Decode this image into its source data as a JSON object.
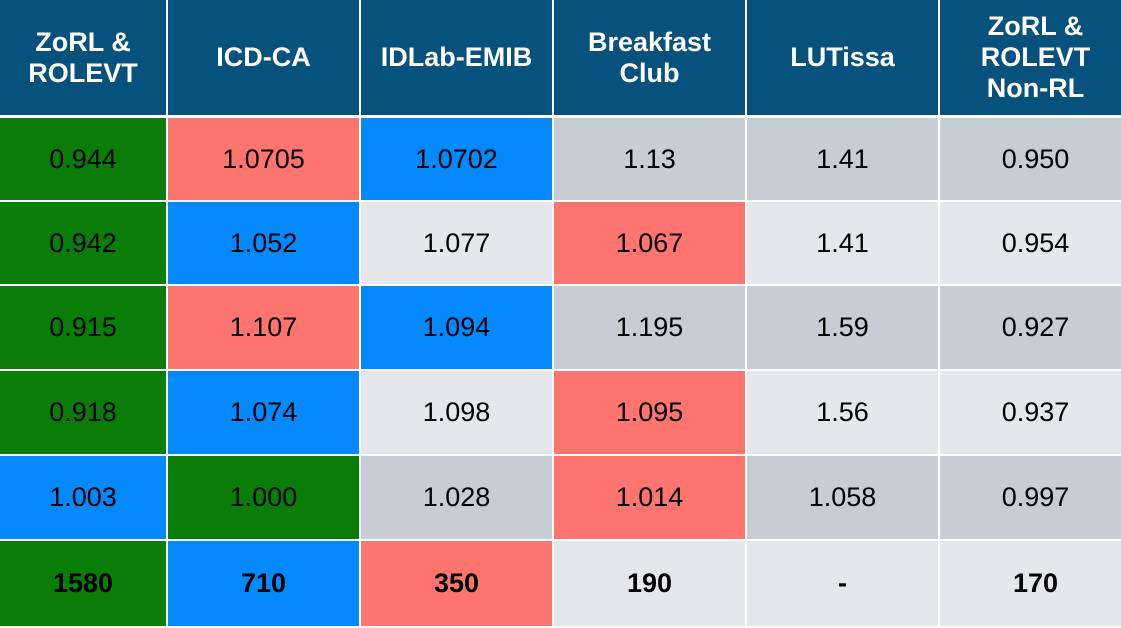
{
  "colors": {
    "header": "#07527c",
    "green": "#0a7d09",
    "blue": "#0389fb",
    "red": "#fe746e",
    "gray_dark": "#c8cdd3",
    "gray_light": "#e5e7ea"
  },
  "chart_data": {
    "type": "table",
    "columns": [
      "ZoRL &\nROLEVT",
      "ICD-CA",
      "IDLab-EMIB",
      "Breakfast\nClub",
      "LUTissa",
      "ZoRL &\nROLEVT\nNon-RL"
    ],
    "rows": [
      {
        "cells": [
          {
            "value": "0.944",
            "fill": "green"
          },
          {
            "value": "1.0705",
            "fill": "red"
          },
          {
            "value": "1.0702",
            "fill": "blue"
          },
          {
            "value": "1.13",
            "fill": "gray_dark"
          },
          {
            "value": "1.41",
            "fill": "gray_dark"
          },
          {
            "value": "0.950",
            "fill": "gray_dark"
          }
        ]
      },
      {
        "cells": [
          {
            "value": "0.942",
            "fill": "green"
          },
          {
            "value": "1.052",
            "fill": "blue"
          },
          {
            "value": "1.077",
            "fill": "gray_light"
          },
          {
            "value": "1.067",
            "fill": "red"
          },
          {
            "value": "1.41",
            "fill": "gray_light"
          },
          {
            "value": "0.954",
            "fill": "gray_light"
          }
        ]
      },
      {
        "cells": [
          {
            "value": "0.915",
            "fill": "green"
          },
          {
            "value": "1.107",
            "fill": "red"
          },
          {
            "value": "1.094",
            "fill": "blue"
          },
          {
            "value": "1.195",
            "fill": "gray_dark"
          },
          {
            "value": "1.59",
            "fill": "gray_dark"
          },
          {
            "value": "0.927",
            "fill": "gray_dark"
          }
        ]
      },
      {
        "cells": [
          {
            "value": "0.918",
            "fill": "green"
          },
          {
            "value": "1.074",
            "fill": "blue"
          },
          {
            "value": "1.098",
            "fill": "gray_light"
          },
          {
            "value": "1.095",
            "fill": "red"
          },
          {
            "value": "1.56",
            "fill": "gray_light"
          },
          {
            "value": "0.937",
            "fill": "gray_light"
          }
        ]
      },
      {
        "cells": [
          {
            "value": "1.003",
            "fill": "blue"
          },
          {
            "value": "1.000",
            "fill": "green"
          },
          {
            "value": "1.028",
            "fill": "gray_dark"
          },
          {
            "value": "1.014",
            "fill": "red"
          },
          {
            "value": "1.058",
            "fill": "gray_dark"
          },
          {
            "value": "0.997",
            "fill": "gray_dark"
          }
        ]
      },
      {
        "bold": true,
        "cells": [
          {
            "value": "1580",
            "fill": "green"
          },
          {
            "value": "710",
            "fill": "blue"
          },
          {
            "value": "350",
            "fill": "red"
          },
          {
            "value": "190",
            "fill": "gray_light"
          },
          {
            "value": "-",
            "fill": "gray_light"
          },
          {
            "value": "170",
            "fill": "gray_light"
          }
        ]
      }
    ]
  }
}
